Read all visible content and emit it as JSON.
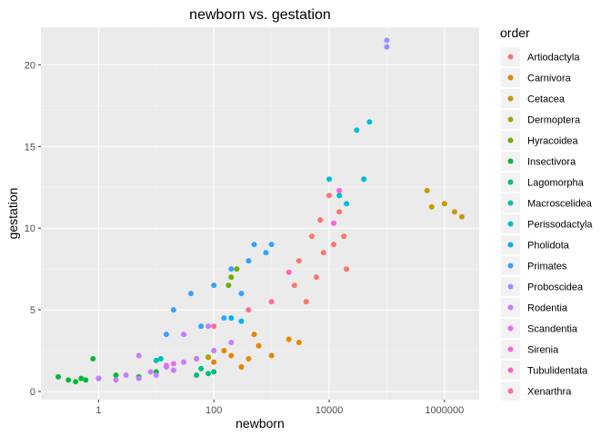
{
  "chart_data": {
    "type": "scatter",
    "title": "newborn vs. gestation",
    "xlabel": "newborn",
    "ylabel": "gestation",
    "x_scale": "log10",
    "xlim": [
      0.1,
      4000000
    ],
    "ylim": [
      -0.5,
      22.3
    ],
    "x_ticks": [
      1,
      100,
      10000,
      1000000
    ],
    "x_tick_labels": [
      "1",
      "100",
      "10000",
      "1000000"
    ],
    "y_ticks": [
      0,
      5,
      10,
      15,
      20
    ],
    "y_tick_labels": [
      "0",
      "5",
      "10",
      "15",
      "20"
    ],
    "grid": true,
    "legend": {
      "title": "order",
      "placement": "right"
    },
    "series": [
      {
        "name": "Artiodactyla",
        "color": "#F8766D",
        "points": [
          [
            3000,
            8.0
          ],
          [
            5000,
            9.5
          ],
          [
            8000,
            8.5
          ],
          [
            12000,
            9.0
          ],
          [
            15000,
            11.0
          ],
          [
            20000,
            7.5
          ],
          [
            6000,
            7.0
          ],
          [
            4000,
            5.5
          ],
          [
            2500,
            6.5
          ],
          [
            10000,
            12.0
          ],
          [
            18000,
            9.5
          ],
          [
            7000,
            10.5
          ]
        ]
      },
      {
        "name": "Carnivora",
        "color": "#E58700",
        "points": [
          [
            50,
            2.0
          ],
          [
            100,
            1.8
          ],
          [
            200,
            2.2
          ],
          [
            300,
            1.5
          ],
          [
            150,
            2.5
          ],
          [
            400,
            2.0
          ],
          [
            1000,
            2.2
          ],
          [
            2000,
            3.2
          ],
          [
            600,
            2.8
          ],
          [
            80,
            2.1
          ],
          [
            500,
            3.5
          ],
          [
            3000,
            3.0
          ]
        ]
      },
      {
        "name": "Cetacea",
        "color": "#C99800",
        "points": [
          [
            500000,
            12.3
          ],
          [
            1000000,
            11.5
          ],
          [
            2000000,
            10.7
          ],
          [
            600000,
            11.3
          ],
          [
            1500000,
            11.0
          ]
        ]
      },
      {
        "name": "Dermoptera",
        "color": "#A3A500",
        "points": [
          [
            50,
            2.0
          ],
          [
            80,
            2.1
          ]
        ]
      },
      {
        "name": "Hyracoidea",
        "color": "#6BB100",
        "points": [
          [
            200,
            7.0
          ],
          [
            250,
            7.5
          ],
          [
            180,
            6.5
          ]
        ]
      },
      {
        "name": "Insectivora",
        "color": "#00BA38",
        "points": [
          [
            0.2,
            0.9
          ],
          [
            0.3,
            0.7
          ],
          [
            0.4,
            0.6
          ],
          [
            0.5,
            0.8
          ],
          [
            0.6,
            0.7
          ],
          [
            0.8,
            2.0
          ],
          [
            1,
            0.8
          ],
          [
            2,
            1.0
          ],
          [
            5,
            0.9
          ],
          [
            10,
            1.2
          ]
        ]
      },
      {
        "name": "Lagomorpha",
        "color": "#00BF7D",
        "points": [
          [
            50,
            1.0
          ],
          [
            80,
            1.1
          ],
          [
            100,
            1.2
          ],
          [
            60,
            1.4
          ]
        ]
      },
      {
        "name": "Macroscelidea",
        "color": "#00C0AF",
        "points": [
          [
            10,
            1.9
          ],
          [
            12,
            2.0
          ]
        ]
      },
      {
        "name": "Perissodactyla",
        "color": "#00BCD8",
        "points": [
          [
            10000,
            13.0
          ],
          [
            15000,
            12.0
          ],
          [
            30000,
            16.0
          ],
          [
            50000,
            16.5
          ],
          [
            20000,
            11.5
          ],
          [
            40000,
            13.0
          ]
        ]
      },
      {
        "name": "Pholidota",
        "color": "#00B0F6",
        "points": [
          [
            200,
            4.5
          ],
          [
            300,
            4.3
          ]
        ]
      },
      {
        "name": "Primates",
        "color": "#35A2FF",
        "points": [
          [
            20,
            5.0
          ],
          [
            40,
            6.0
          ],
          [
            100,
            6.5
          ],
          [
            200,
            7.5
          ],
          [
            400,
            8.0
          ],
          [
            500,
            9.0
          ],
          [
            15,
            3.5
          ],
          [
            60,
            4.0
          ],
          [
            150,
            4.5
          ],
          [
            300,
            6.0
          ],
          [
            800,
            8.5
          ],
          [
            1000,
            9.0
          ]
        ]
      },
      {
        "name": "Proboscidea",
        "color": "#9590FF",
        "points": [
          [
            100000,
            21.5
          ],
          [
            100000,
            21.1
          ]
        ]
      },
      {
        "name": "Rodentia",
        "color": "#C77CFF",
        "points": [
          [
            1,
            0.8
          ],
          [
            2,
            0.7
          ],
          [
            3,
            1.0
          ],
          [
            5,
            0.8
          ],
          [
            8,
            1.2
          ],
          [
            10,
            1.0
          ],
          [
            15,
            1.5
          ],
          [
            20,
            1.3
          ],
          [
            30,
            1.8
          ],
          [
            50,
            2.0
          ],
          [
            100,
            2.5
          ],
          [
            200,
            3.0
          ],
          [
            5,
            2.2
          ],
          [
            30,
            3.5
          ],
          [
            80,
            4.0
          ]
        ]
      },
      {
        "name": "Scandentia",
        "color": "#E76BF3",
        "points": [
          [
            15,
            1.6
          ],
          [
            20,
            1.7
          ]
        ]
      },
      {
        "name": "Sirenia",
        "color": "#FA62DB",
        "points": [
          [
            12000,
            10.3
          ],
          [
            15000,
            12.3
          ]
        ]
      },
      {
        "name": "Tubulidentata",
        "color": "#FF62BC",
        "points": [
          [
            2000,
            7.3
          ]
        ]
      },
      {
        "name": "Xenarthra",
        "color": "#FF6C91",
        "points": [
          [
            100,
            4.0
          ],
          [
            400,
            5.0
          ],
          [
            1000,
            5.5
          ]
        ]
      }
    ]
  }
}
